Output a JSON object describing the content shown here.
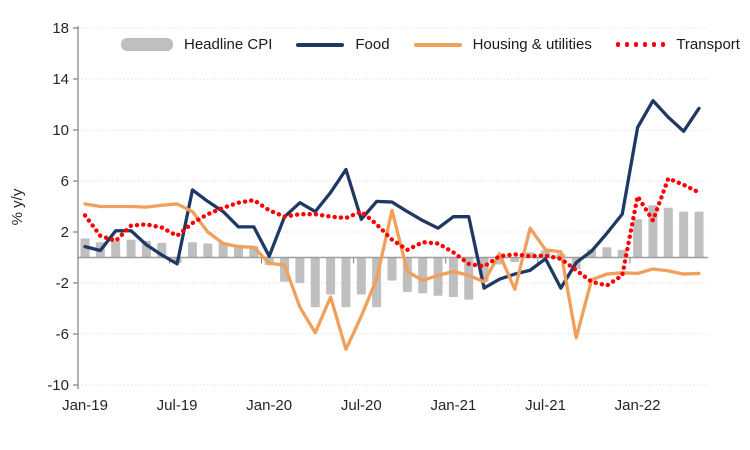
{
  "chart_data": {
    "type": "combo",
    "title": "",
    "ylabel": "% y/y",
    "ylim": [
      -10,
      18
    ],
    "yticks": [
      18,
      14,
      10,
      6,
      2,
      -2,
      -6,
      -10
    ],
    "xtick_labels": [
      "Jan-19",
      "Jul-19",
      "Jan-20",
      "Jul-20",
      "Jan-21",
      "Jul-21",
      "Jan-22"
    ],
    "xtick_every": 6,
    "grid": "dotted-horizontal",
    "legend_position": "top",
    "axis_color": "#808080",
    "gridline_color": "#d9d9d9",
    "zeroline_color": "#9e9e9e",
    "text_color": "#262626",
    "categories": [
      "Jan-19",
      "Feb-19",
      "Mar-19",
      "Apr-19",
      "May-19",
      "Jun-19",
      "Jul-19",
      "Aug-19",
      "Sep-19",
      "Oct-19",
      "Nov-19",
      "Dec-19",
      "Jan-20",
      "Feb-20",
      "Mar-20",
      "Apr-20",
      "May-20",
      "Jun-20",
      "Jul-20",
      "Aug-20",
      "Sep-20",
      "Oct-20",
      "Nov-20",
      "Dec-20",
      "Jan-21",
      "Feb-21",
      "Mar-21",
      "Apr-21",
      "May-21",
      "Jun-21",
      "Jul-21",
      "Aug-21",
      "Sep-21",
      "Oct-21",
      "Nov-21",
      "Dec-21",
      "Jan-22",
      "Feb-22",
      "Mar-22",
      "Apr-22",
      "May-22"
    ],
    "series": [
      {
        "name": "Headline CPI",
        "type": "bar",
        "color": "#bfbfbf",
        "values": [
          1.5,
          1.2,
          1.3,
          1.4,
          1.3,
          1.15,
          -0.45,
          1.2,
          1.1,
          1.2,
          1.0,
          0.9,
          -0.6,
          -1.9,
          -2.0,
          -3.9,
          -2.9,
          -3.9,
          -2.9,
          -3.9,
          -1.8,
          -2.7,
          -2.8,
          -3.0,
          -3.1,
          -3.3,
          -1.9,
          -0.55,
          -0.35,
          0.4,
          0.55,
          0.3,
          -0.9,
          0.65,
          0.8,
          0.6,
          3.0,
          4.1,
          3.9,
          3.6,
          3.6
        ]
      },
      {
        "name": "Food",
        "type": "line",
        "color": "#1f3864",
        "values": [
          0.85,
          0.55,
          2.1,
          2.1,
          1.0,
          0.2,
          -0.5,
          5.3,
          4.4,
          3.6,
          2.4,
          2.4,
          0.1,
          3.2,
          4.3,
          3.6,
          5.1,
          6.9,
          3.0,
          4.4,
          4.35,
          3.6,
          2.9,
          2.3,
          3.2,
          3.2,
          -2.4,
          -1.7,
          -1.3,
          -1.0,
          -0.1,
          -2.4,
          -0.4,
          0.5,
          1.9,
          3.4,
          10.2,
          12.3,
          11.0,
          9.9,
          11.7
        ]
      },
      {
        "name": "Housing & utilities",
        "type": "line",
        "color": "#f0a05a",
        "values": [
          4.2,
          4.0,
          4.0,
          4.0,
          3.95,
          4.1,
          4.2,
          3.6,
          2.0,
          1.1,
          0.85,
          0.8,
          -0.45,
          -0.6,
          -3.9,
          -5.9,
          -3.1,
          -7.2,
          -4.6,
          -1.7,
          3.7,
          -1.1,
          -1.8,
          -1.4,
          -1.1,
          -1.4,
          -1.9,
          0.3,
          -2.5,
          2.3,
          0.6,
          0.45,
          -6.3,
          -1.75,
          -1.3,
          -1.2,
          -1.25,
          -0.9,
          -1.05,
          -1.3,
          -1.25
        ]
      },
      {
        "name": "Transport",
        "type": "dotted-line",
        "color": "#ff0000",
        "values": [
          3.3,
          1.7,
          1.3,
          2.5,
          2.6,
          2.35,
          1.7,
          2.7,
          3.4,
          3.9,
          4.3,
          4.5,
          3.7,
          3.2,
          3.4,
          3.4,
          3.2,
          3.1,
          3.6,
          2.6,
          1.4,
          0.6,
          1.2,
          1.1,
          0.4,
          -0.5,
          -0.7,
          0.1,
          0.25,
          0.1,
          0.15,
          -0.1,
          -1.0,
          -1.9,
          -2.2,
          -1.4,
          4.8,
          2.9,
          6.2,
          5.7,
          5.1
        ]
      }
    ]
  }
}
